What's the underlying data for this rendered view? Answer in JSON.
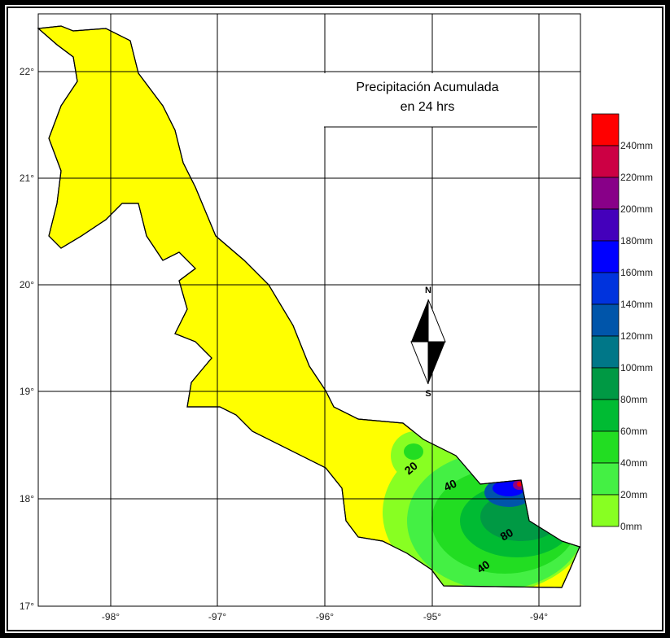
{
  "title": [
    "Precipitación Acumulada",
    "en 24 hrs"
  ],
  "latitude_labels": [
    "22°",
    "21°",
    "20°",
    "19°",
    "18°",
    "17°"
  ],
  "longitude_labels": [
    "-98°",
    "-97°",
    "-96°",
    "-95°",
    "-94°"
  ],
  "compass": {
    "north": "N",
    "south": "S"
  },
  "legend": [
    {
      "label": "240mm",
      "color": "#ff0000"
    },
    {
      "label": "220mm",
      "color": "#cc0044"
    },
    {
      "label": "200mm",
      "color": "#880088"
    },
    {
      "label": "180mm",
      "color": "#4400bb"
    },
    {
      "label": "160mm",
      "color": "#0000ff"
    },
    {
      "label": "140mm",
      "color": "#0033dd"
    },
    {
      "label": "120mm",
      "color": "#0055aa"
    },
    {
      "label": "100mm",
      "color": "#007788"
    },
    {
      "label": "80mm",
      "color": "#009944"
    },
    {
      "label": "60mm",
      "color": "#00bb33"
    },
    {
      "label": "40mm",
      "color": "#22dd22"
    },
    {
      "label": "20mm",
      "color": "#44f044"
    },
    {
      "label": "0mm",
      "color": "#88ff22"
    }
  ],
  "contour_labels": [
    "20",
    "40",
    "80",
    "40"
  ]
}
